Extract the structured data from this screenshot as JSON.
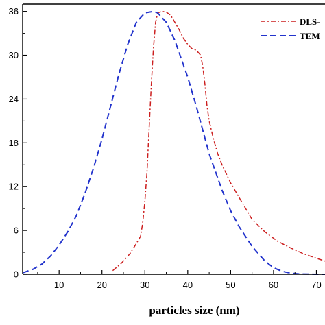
{
  "chart_data": {
    "type": "line",
    "xlabel": "particles size (nm)",
    "ylabel": "",
    "xlim": [
      1.5,
      72
    ],
    "ylim": [
      0,
      37
    ],
    "xticks": [
      10,
      20,
      30,
      40,
      50,
      60,
      70
    ],
    "yticks": [
      0,
      6,
      12,
      18,
      24,
      30,
      36
    ],
    "grid": false,
    "legend_position": "top-right",
    "series": [
      {
        "name": "DLS-",
        "color": "#cc1f1f",
        "style": "dash-dot",
        "x": [
          22.5,
          24.5,
          26.5,
          28,
          29,
          29.5,
          30,
          30.5,
          31,
          31.5,
          32,
          32.5,
          33,
          34,
          35,
          36,
          37,
          38,
          39,
          40,
          41,
          42,
          43,
          43.5,
          44,
          44.5,
          45,
          46,
          47,
          48,
          50,
          52,
          55,
          58,
          61,
          64,
          67,
          70,
          72
        ],
        "y": [
          0.5,
          1.5,
          2.8,
          4.2,
          5.2,
          7,
          10,
          14,
          20,
          26,
          31,
          34.5,
          35.8,
          36,
          35.9,
          35.5,
          34.5,
          33.5,
          32.3,
          31.5,
          30.9,
          30.7,
          30,
          28.5,
          26,
          23,
          21,
          18.5,
          16.5,
          15,
          12.5,
          10.5,
          7.5,
          5.8,
          4.5,
          3.6,
          2.8,
          2.2,
          1.8
        ]
      },
      {
        "name": "TEM",
        "color": "#2233cc",
        "style": "dashed",
        "x": [
          1.5,
          4,
          6,
          8,
          10,
          12,
          14,
          16,
          18,
          20,
          22,
          24,
          26,
          28,
          30,
          32,
          33,
          35,
          37,
          40,
          42,
          45,
          48,
          50,
          52,
          55,
          58,
          60,
          62,
          64,
          66,
          70,
          72
        ],
        "y": [
          0.2,
          0.7,
          1.4,
          2.5,
          4.0,
          5.8,
          8.0,
          11.0,
          14.5,
          18.5,
          23.0,
          27.5,
          31.5,
          34.5,
          35.8,
          36.0,
          35.8,
          34.5,
          32.0,
          27.0,
          23.0,
          16.5,
          11.5,
          8.7,
          6.5,
          3.8,
          1.8,
          0.9,
          0.4,
          0.15,
          0.05,
          0.0,
          0.0
        ]
      }
    ]
  }
}
